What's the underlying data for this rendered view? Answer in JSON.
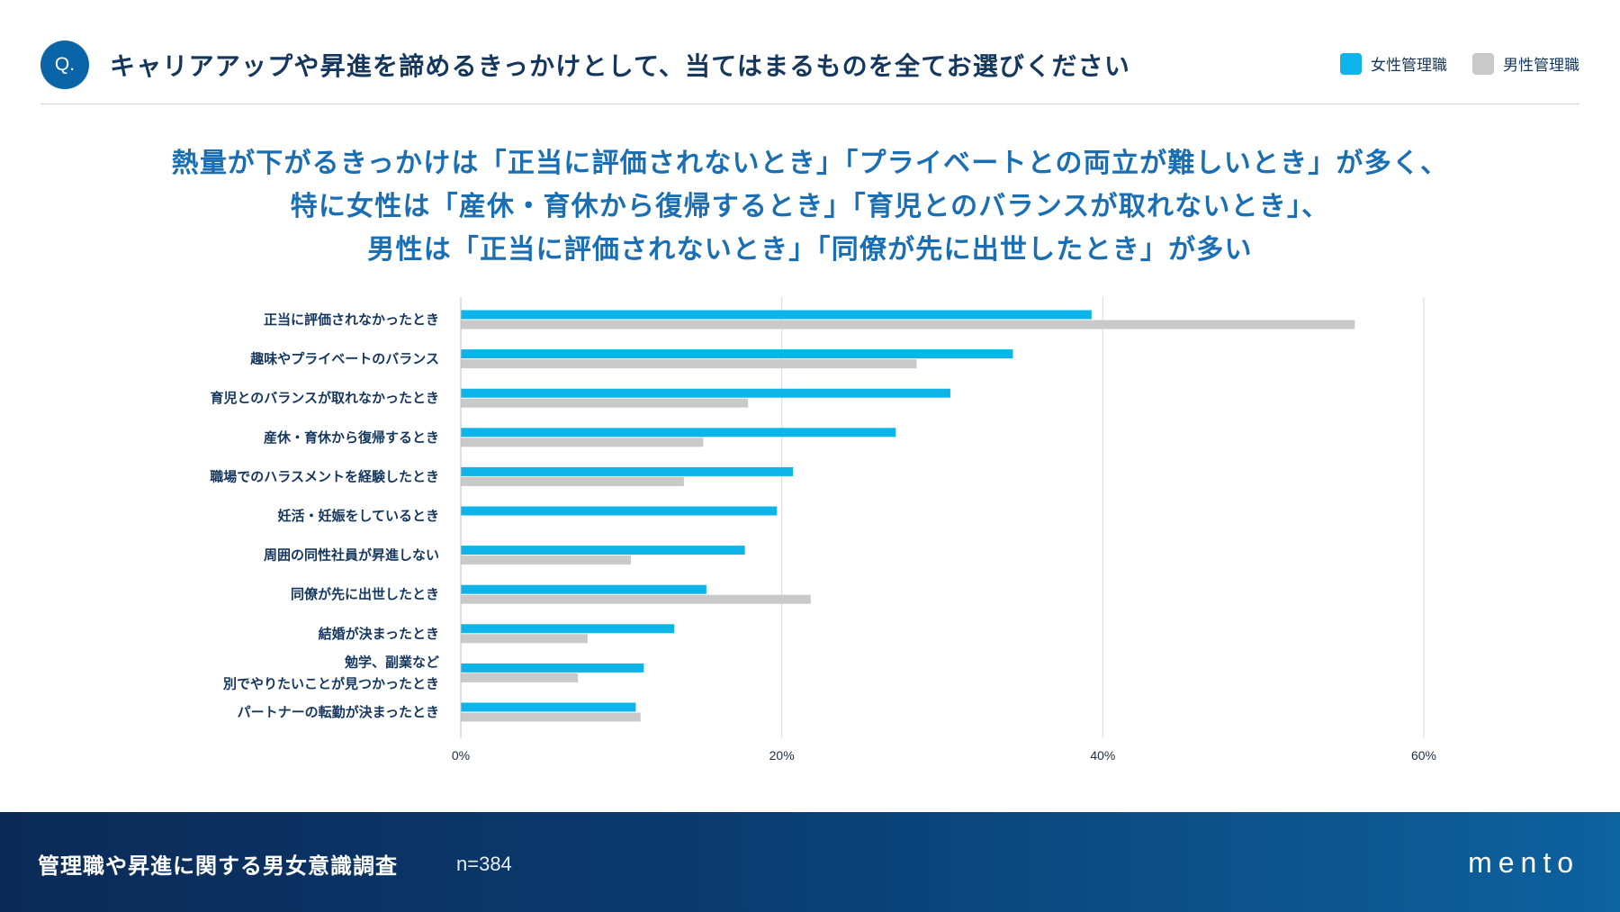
{
  "header": {
    "badge": "Q.",
    "question": "キャリアアップや昇進を諦めるきっかけとして、当てはまるものを全てお選びください"
  },
  "legend": [
    {
      "label": "女性管理職",
      "color": "#0cb4ea"
    },
    {
      "label": "男性管理職",
      "color": "#c9c9c9"
    }
  ],
  "headline": {
    "line1": "熱量が下がるきっかけは「正当に評価されないとき」「プライベートとの両立が難しいとき」が多く、",
    "line2": "特に女性は「産休・育休から復帰するとき」「育児とのバランスが取れないとき」、",
    "line3": "男性は「正当に評価されないとき」「同僚が先に出世したとき」が多い"
  },
  "chart_data": {
    "type": "bar",
    "orientation": "horizontal",
    "categories": [
      [
        "正当に評価されなかったとき"
      ],
      [
        "趣味やプライベートのバランス"
      ],
      [
        "育児とのバランスが取れなかったとき"
      ],
      [
        "産休・育休から復帰するとき"
      ],
      [
        "職場でのハラスメントを経験したとき"
      ],
      [
        "妊活・妊娠をしているとき"
      ],
      [
        "周囲の同性社員が昇進しない"
      ],
      [
        "同僚が先に出世したとき"
      ],
      [
        "結婚が決まったとき"
      ],
      [
        "勉学、副業など",
        "別でやりたいことが見つかったとき"
      ],
      [
        "パートナーの転勤が決まったとき"
      ]
    ],
    "series": [
      {
        "name": "女性管理職",
        "color": "#0cb4ea",
        "values": [
          39.3,
          34.4,
          30.5,
          27.1,
          20.7,
          19.7,
          17.7,
          15.3,
          13.3,
          11.4,
          10.9
        ]
      },
      {
        "name": "男性管理職",
        "color": "#c9c9c9",
        "values": [
          55.7,
          28.4,
          17.9,
          15.1,
          13.9,
          0,
          10.6,
          21.8,
          7.9,
          7.3,
          11.2
        ]
      }
    ],
    "xlim": [
      0,
      60
    ],
    "xticks": [
      0,
      20,
      40,
      60
    ],
    "xtick_labels": [
      "0%",
      "20%",
      "40%",
      "60%"
    ],
    "grid": true
  },
  "footer": {
    "title": "管理職や昇進に関する男女意識調査",
    "n": "n=384",
    "logo": "mento"
  }
}
